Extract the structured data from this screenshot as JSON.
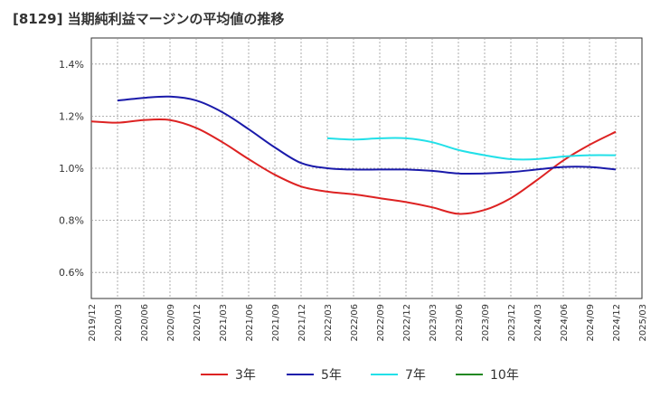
{
  "title": "[8129]  当期純利益マージンの平均値の推移",
  "chart_data": {
    "type": "line",
    "title": "[8129]  当期純利益マージンの平均値の推移",
    "xlabel": "",
    "ylabel": "",
    "ylim": [
      0.5,
      1.5
    ],
    "yticks": [
      0.6,
      0.8,
      1.0,
      1.2,
      1.4
    ],
    "ytick_labels": [
      "0.6%",
      "0.8%",
      "1.0%",
      "1.2%",
      "1.4%"
    ],
    "x_range": [
      "2019/12",
      "2025/03"
    ],
    "xtick_labels": [
      "2019/12",
      "2020/03",
      "2020/06",
      "2020/09",
      "2020/12",
      "2021/03",
      "2021/06",
      "2021/09",
      "2021/12",
      "2022/03",
      "2022/06",
      "2022/09",
      "2022/12",
      "2023/03",
      "2023/06",
      "2023/09",
      "2023/12",
      "2024/03",
      "2024/06",
      "2024/09",
      "2024/12",
      "2025/03"
    ],
    "grid": true,
    "legend_position": "bottom",
    "series": [
      {
        "name": "3年",
        "color": "#dd2222",
        "points": [
          [
            "2019/12",
            1.18
          ],
          [
            "2020/03",
            1.175
          ],
          [
            "2020/06",
            1.185
          ],
          [
            "2020/09",
            1.185
          ],
          [
            "2020/12",
            1.155
          ],
          [
            "2021/03",
            1.1
          ],
          [
            "2021/06",
            1.035
          ],
          [
            "2021/09",
            0.975
          ],
          [
            "2021/12",
            0.93
          ],
          [
            "2022/03",
            0.91
          ],
          [
            "2022/06",
            0.9
          ],
          [
            "2022/09",
            0.885
          ],
          [
            "2022/12",
            0.87
          ],
          [
            "2023/03",
            0.85
          ],
          [
            "2023/06",
            0.825
          ],
          [
            "2023/09",
            0.84
          ],
          [
            "2023/12",
            0.885
          ],
          [
            "2024/03",
            0.955
          ],
          [
            "2024/06",
            1.03
          ],
          [
            "2024/09",
            1.09
          ],
          [
            "2024/12",
            1.14
          ]
        ]
      },
      {
        "name": "5年",
        "color": "#1a1aaa",
        "points": [
          [
            "2020/03",
            1.26
          ],
          [
            "2020/06",
            1.27
          ],
          [
            "2020/09",
            1.275
          ],
          [
            "2020/12",
            1.26
          ],
          [
            "2021/03",
            1.215
          ],
          [
            "2021/06",
            1.15
          ],
          [
            "2021/09",
            1.08
          ],
          [
            "2021/12",
            1.02
          ],
          [
            "2022/03",
            1.0
          ],
          [
            "2022/06",
            0.995
          ],
          [
            "2022/09",
            0.995
          ],
          [
            "2022/12",
            0.995
          ],
          [
            "2023/03",
            0.99
          ],
          [
            "2023/06",
            0.98
          ],
          [
            "2023/09",
            0.98
          ],
          [
            "2023/12",
            0.985
          ],
          [
            "2024/03",
            0.995
          ],
          [
            "2024/06",
            1.005
          ],
          [
            "2024/09",
            1.005
          ],
          [
            "2024/12",
            0.995
          ]
        ]
      },
      {
        "name": "7年",
        "color": "#22e0e8",
        "points": [
          [
            "2022/03",
            1.115
          ],
          [
            "2022/06",
            1.11
          ],
          [
            "2022/09",
            1.115
          ],
          [
            "2022/12",
            1.115
          ],
          [
            "2023/03",
            1.1
          ],
          [
            "2023/06",
            1.07
          ],
          [
            "2023/09",
            1.05
          ],
          [
            "2023/12",
            1.035
          ],
          [
            "2024/03",
            1.035
          ],
          [
            "2024/06",
            1.045
          ],
          [
            "2024/09",
            1.05
          ],
          [
            "2024/12",
            1.05
          ]
        ]
      },
      {
        "name": "10年",
        "color": "#228822",
        "points": []
      }
    ]
  }
}
